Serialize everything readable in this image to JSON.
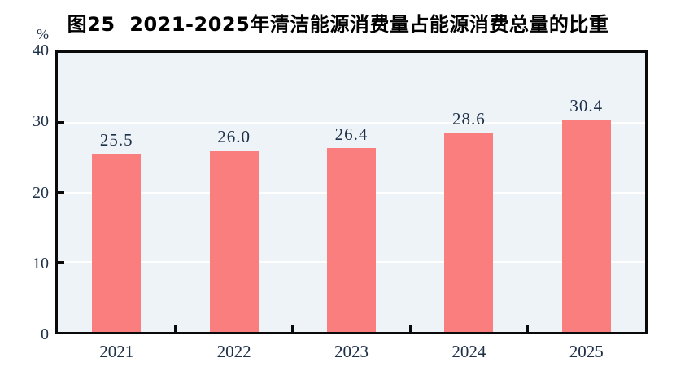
{
  "chart_data": {
    "type": "bar",
    "title": "图25  2021-2025年清洁能源消费量占能源消费总量的比重",
    "y_unit": "%",
    "categories": [
      "2021",
      "2022",
      "2023",
      "2024",
      "2025"
    ],
    "values": [
      25.5,
      26.0,
      26.4,
      28.6,
      30.4
    ],
    "value_labels": [
      "25.5",
      "26.0",
      "26.4",
      "28.6",
      "30.4"
    ],
    "xlabel": "",
    "ylabel": "%",
    "ylim": [
      0,
      40
    ],
    "yticks": [
      0,
      10,
      20,
      30,
      40
    ],
    "ytick_labels": [
      "0",
      "10",
      "20",
      "30",
      "40"
    ],
    "gridline_values": [
      10,
      20,
      30
    ],
    "grid": true,
    "legend": "none",
    "colors": {
      "bar": "#FB7E7E",
      "plot_bg": "#EDF3F7",
      "gridline": "#FFFFFF",
      "axis_border": "#0A0A0A",
      "tick_label": "#1E2F48",
      "value_label": "#1E2F48",
      "title": "#000000"
    }
  }
}
